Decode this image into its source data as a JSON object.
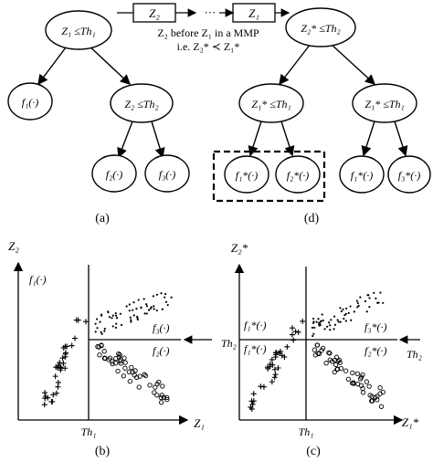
{
  "header": {
    "box_left": "Z₂",
    "box_right": "Z₁",
    "dots": "···",
    "caption_line1": "Z₂  before  Z₁  in a MMP",
    "caption_line2": "i.e.  Z₂* ≺ Z₁*"
  },
  "tree_a": {
    "root": "Z₁ ≤Th₁",
    "left_leaf": "f₁(·)",
    "right_node": "Z₂ ≤Th₂",
    "leaf_f2": "f₂(·)",
    "leaf_f3": "f₃(·)",
    "caption": "(a)"
  },
  "tree_d": {
    "root": "Z₂* ≤Th₂",
    "left_node": "Z₁* ≤Th₁",
    "right_node": "Z₁* ≤Th₁",
    "leaf_f1s": "f₁*(·)",
    "leaf_f2s": "f₂*(·)",
    "leaf_f1s_b": "f₁*(·)",
    "leaf_f3s": "f₃*(·)",
    "caption": "(d)"
  },
  "plot_b": {
    "y_axis": "Z₂",
    "x_axis": "Z₁",
    "threshold_x": "Th₁",
    "threshold_y": "Th₂",
    "label_f1": "f₁(·)",
    "label_f2": "f₂(·)",
    "label_f3": "f₃(·)",
    "caption": "(b)"
  },
  "plot_c": {
    "y_axis": "Z₂*",
    "x_axis": "Z₁*",
    "threshold_x": "Th₁",
    "threshold_y": "Th₂",
    "label_f1a": "f₁*(·)",
    "label_f1b": "f₁*(·)",
    "label_f2": "f₂*(·)",
    "label_f3": "f₃*(·)",
    "caption": "(c)"
  }
}
